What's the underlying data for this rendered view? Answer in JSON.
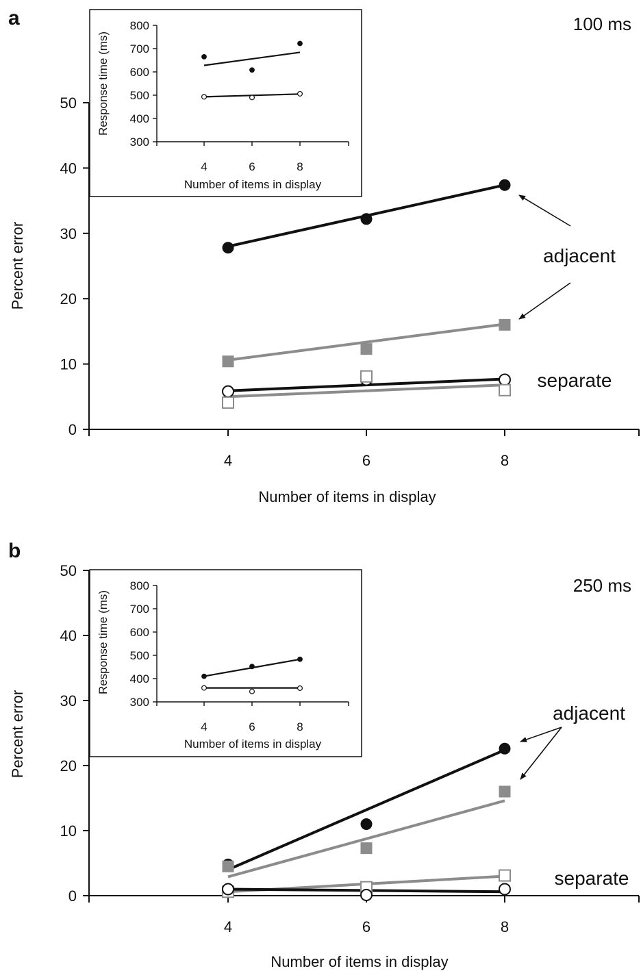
{
  "chart_data": [
    {
      "type": "line",
      "panel": "a",
      "condition": "100 ms",
      "xlabel": "Number of items in display",
      "ylabel": "Percent error",
      "x": [
        4,
        6,
        8
      ],
      "xlim": [
        2,
        10
      ],
      "ylim": [
        0,
        50
      ],
      "yticks": [
        0,
        10,
        20,
        30,
        40,
        50
      ],
      "grid": false,
      "annotations": [
        "adjacent",
        "separate"
      ],
      "series": [
        {
          "group": "adjacent",
          "marker": "filled-circle",
          "color": "#111111",
          "values": [
            27.8,
            32.2,
            37.4
          ],
          "fit": [
            28.0,
            32.7,
            37.4
          ]
        },
        {
          "group": "adjacent",
          "marker": "filled-square",
          "color": "#8c8c8c",
          "values": [
            10.4,
            12.3,
            16.0
          ],
          "fit": [
            10.6,
            13.3,
            16.1
          ]
        },
        {
          "group": "separate",
          "marker": "open-circle",
          "color": "#111111",
          "values": [
            5.8,
            7.6,
            7.6
          ],
          "fit": [
            5.9,
            6.8,
            7.7
          ]
        },
        {
          "group": "separate",
          "marker": "open-square",
          "color": "#8c8c8c",
          "values": [
            4.1,
            8.1,
            6.0
          ],
          "fit": [
            5.0,
            5.9,
            6.8
          ]
        }
      ],
      "inset": {
        "type": "scatter",
        "xlabel": "Number of items in display",
        "ylabel": "Response time (ms)",
        "x": [
          4,
          6,
          8
        ],
        "xlim": [
          2,
          10
        ],
        "ylim": [
          300,
          800
        ],
        "yticks": [
          300,
          400,
          500,
          600,
          700,
          800
        ],
        "series": [
          {
            "marker": "filled-circle",
            "values": [
              665,
              608,
              722
            ],
            "fit": [
              628,
              656,
              684
            ]
          },
          {
            "marker": "open-circle",
            "values": [
              493,
              490,
              506
            ],
            "fit": [
              493,
              499,
              505
            ]
          }
        ]
      }
    },
    {
      "type": "line",
      "panel": "b",
      "condition": "250 ms",
      "xlabel": "Number of items in display",
      "ylabel": "Percent error",
      "x": [
        4,
        6,
        8
      ],
      "xlim": [
        2,
        10
      ],
      "ylim": [
        0,
        50
      ],
      "yticks": [
        0,
        10,
        20,
        30,
        40,
        50
      ],
      "grid": false,
      "annotations": [
        "adjacent",
        "separate"
      ],
      "series": [
        {
          "group": "adjacent",
          "marker": "filled-circle",
          "color": "#111111",
          "values": [
            4.8,
            11.0,
            22.6
          ],
          "fit": [
            4.0,
            13.2,
            22.4
          ]
        },
        {
          "group": "adjacent",
          "marker": "filled-square",
          "color": "#8c8c8c",
          "values": [
            4.5,
            7.3,
            16.0
          ],
          "fit": [
            2.9,
            8.7,
            14.6
          ]
        },
        {
          "group": "separate",
          "marker": "open-square",
          "color": "#8c8c8c",
          "values": [
            0.6,
            1.3,
            3.1
          ],
          "fit": [
            0.6,
            1.8,
            3.0
          ]
        },
        {
          "group": "separate",
          "marker": "open-circle",
          "color": "#111111",
          "values": [
            1.0,
            0.1,
            1.0
          ],
          "fit": [
            1.0,
            0.8,
            0.6
          ]
        }
      ],
      "inset": {
        "type": "scatter",
        "xlabel": "Number of items in display",
        "ylabel": "Response time (ms)",
        "x": [
          4,
          6,
          8
        ],
        "xlim": [
          2,
          10
        ],
        "ylim": [
          300,
          800
        ],
        "yticks": [
          300,
          400,
          500,
          600,
          700,
          800
        ],
        "series": [
          {
            "marker": "filled-circle",
            "values": [
              410,
              452,
              483
            ],
            "fit": [
              410,
              446,
              483
            ]
          },
          {
            "marker": "open-circle",
            "values": [
              360,
              345,
              359
            ],
            "fit": [
              360,
              360,
              360
            ]
          }
        ]
      }
    }
  ]
}
